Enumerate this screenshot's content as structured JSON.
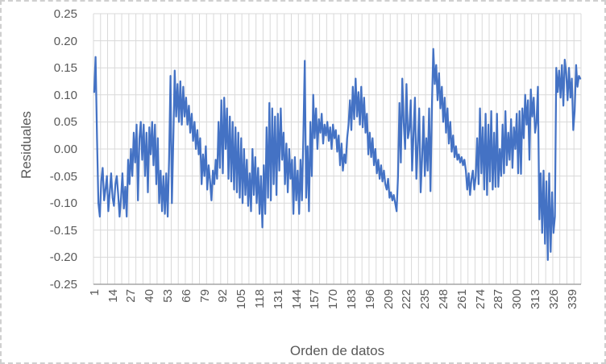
{
  "chart_data": {
    "type": "line",
    "title": "",
    "xlabel": "Orden de datos",
    "ylabel": "Residuales",
    "legend": "none",
    "grid": "both",
    "background": "#ffffff",
    "ylim": [
      -0.25,
      0.25
    ],
    "y_tick_step": 0.05,
    "y_tick_labels": [
      "0.25",
      "0.20",
      "0.15",
      "0.10",
      "0.05",
      "0.00",
      "-0.05",
      "-0.10",
      "-0.15",
      "-0.20",
      "-0.25"
    ],
    "x_tick_labels": [
      "1",
      "14",
      "27",
      "40",
      "53",
      "66",
      "79",
      "92",
      "105",
      "118",
      "131",
      "144",
      "157",
      "170",
      "183",
      "196",
      "209",
      "222",
      "235",
      "248",
      "261",
      "274",
      "287",
      "300",
      "313",
      "326",
      "339"
    ],
    "x_tick_interval": 13,
    "x_grid_every": 5,
    "n_points": 345,
    "colors": {
      "line": "#4472C4",
      "gridline": "#D9D9D9",
      "axis_line": "#A6A6A6",
      "text": "#595959",
      "frame_border": "#CFCFCF"
    },
    "series": [
      {
        "name": "Residuales",
        "color": "#4472C4",
        "values": [
          0.105,
          0.17,
          0.02,
          -0.1,
          -0.125,
          -0.06,
          -0.035,
          -0.095,
          -0.075,
          -0.05,
          -0.115,
          -0.08,
          -0.045,
          -0.09,
          -0.105,
          -0.065,
          -0.05,
          -0.085,
          -0.125,
          -0.09,
          -0.045,
          -0.11,
          -0.07,
          -0.125,
          -0.02,
          -0.065,
          0.0,
          -0.05,
          0.03,
          -0.025,
          0.045,
          -0.095,
          0.02,
          0.05,
          -0.02,
          0.045,
          -0.05,
          0.03,
          -0.08,
          0.04,
          -0.01,
          0.05,
          -0.03,
          0.045,
          -0.065,
          0.02,
          -0.1,
          -0.04,
          -0.115,
          -0.05,
          -0.12,
          -0.045,
          -0.125,
          -0.02,
          0.135,
          -0.1,
          0.02,
          0.145,
          0.06,
          0.12,
          0.05,
          0.125,
          0.045,
          0.115,
          0.06,
          0.095,
          0.045,
          0.08,
          0.03,
          0.065,
          0.015,
          0.05,
          0.0,
          0.035,
          -0.01,
          0.02,
          -0.065,
          -0.01,
          -0.05,
          0.005,
          -0.075,
          -0.03,
          -0.06,
          -0.095,
          -0.04,
          -0.065,
          -0.02,
          -0.055,
          0.05,
          -0.035,
          0.09,
          -0.045,
          0.095,
          0.0,
          0.075,
          -0.055,
          0.06,
          -0.06,
          0.05,
          -0.075,
          0.04,
          -0.08,
          0.03,
          -0.09,
          0.02,
          -0.1,
          0.0,
          -0.085,
          -0.02,
          -0.105,
          -0.045,
          -0.115,
          0.0,
          -0.085,
          -0.015,
          -0.1,
          -0.035,
          -0.12,
          -0.05,
          -0.145,
          -0.03,
          -0.12,
          0.04,
          -0.09,
          0.085,
          -0.095,
          0.075,
          -0.065,
          0.06,
          -0.085,
          0.065,
          -0.04,
          0.075,
          -0.02,
          0.03,
          -0.065,
          0.01,
          -0.08,
          0.0,
          -0.055,
          -0.02,
          -0.12,
          -0.015,
          -0.095,
          -0.04,
          -0.12,
          -0.02,
          -0.095,
          0.02,
          0.163,
          -0.09,
          0.005,
          -0.115,
          0.05,
          -0.05,
          0.1,
          0.02,
          0.075,
          0.0,
          0.055,
          0.03,
          0.065,
          0.01,
          0.045,
          0.025,
          0.05,
          0.015,
          0.04,
          0.0,
          0.045,
          0.02,
          0.035,
          -0.005,
          0.025,
          -0.03,
          0.01,
          -0.04,
          -0.01,
          -0.026,
          0.02,
          0.045,
          0.09,
          0.035,
          0.115,
          0.055,
          0.13,
          0.06,
          0.105,
          0.045,
          0.115,
          0.04,
          0.095,
          0.03,
          0.065,
          -0.01,
          0.03,
          -0.015,
          0.02,
          -0.03,
          0.0,
          -0.045,
          -0.02,
          -0.055,
          -0.03,
          -0.06,
          -0.04,
          -0.065,
          -0.075,
          -0.055,
          -0.09,
          -0.08,
          -0.095,
          -0.085,
          -0.1,
          -0.115,
          -0.05,
          0.085,
          -0.025,
          0.13,
          0.05,
          0.0,
          0.12,
          0.02,
          0.035,
          0.09,
          -0.04,
          0.03,
          0.095,
          -0.055,
          0.01,
          0.075,
          -0.08,
          -0.02,
          0.06,
          -0.05,
          0.02,
          -0.04,
          0.075,
          -0.078,
          0.08,
          0.185,
          0.12,
          0.155,
          0.09,
          0.14,
          0.075,
          0.115,
          0.05,
          0.095,
          0.03,
          0.075,
          0.01,
          0.05,
          -0.005,
          0.025,
          -0.015,
          0.005,
          -0.02,
          -0.01,
          -0.025,
          -0.015,
          -0.03,
          -0.02,
          -0.04,
          -0.075,
          -0.045,
          -0.085,
          -0.055,
          -0.04,
          -0.075,
          -0.05,
          0.02,
          -0.065,
          0.075,
          -0.045,
          0.04,
          -0.075,
          0.065,
          -0.085,
          0.045,
          -0.06,
          0.07,
          -0.075,
          0.03,
          -0.07,
          0.065,
          -0.07,
          0.0,
          -0.05,
          0.045,
          -0.045,
          0.07,
          -0.03,
          0.03,
          -0.02,
          0.055,
          -0.035,
          0.04,
          0.0,
          0.065,
          -0.045,
          0.07,
          -0.046,
          0.075,
          0.02,
          0.1,
          0.045,
          0.09,
          -0.02,
          0.11,
          0.06,
          0.095,
          0.03,
          0.05,
          0.115,
          -0.13,
          -0.045,
          -0.155,
          -0.04,
          -0.175,
          -0.06,
          -0.205,
          -0.045,
          -0.19,
          -0.08,
          -0.155,
          -0.125,
          0.15,
          0.105,
          0.145,
          0.095,
          0.155,
          0.08,
          0.165,
          0.14,
          0.09,
          0.15,
          0.095,
          0.13,
          0.035,
          0.07,
          0.155,
          0.115,
          0.135,
          0.13
        ]
      }
    ]
  }
}
